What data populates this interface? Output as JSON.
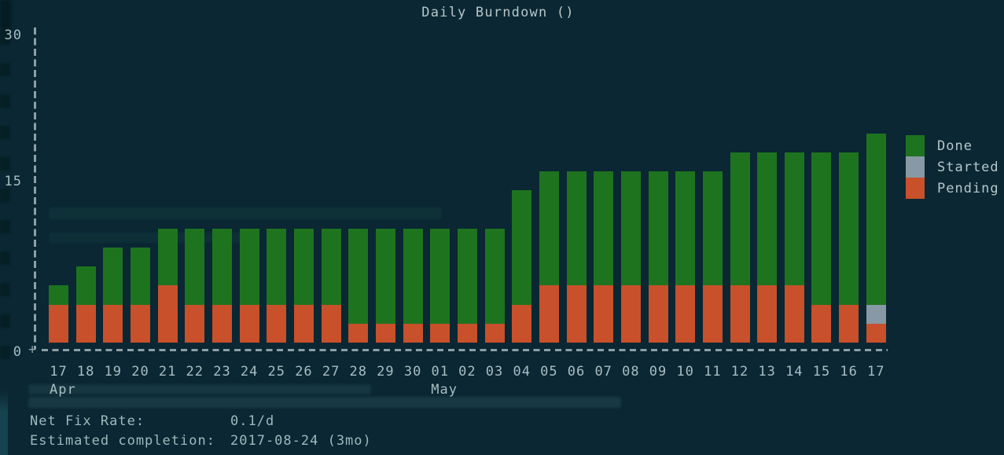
{
  "chart_data": {
    "type": "bar",
    "title": "Daily Burndown ()",
    "stacked": true,
    "categories": [
      "17",
      "18",
      "19",
      "20",
      "21",
      "22",
      "23",
      "24",
      "25",
      "26",
      "27",
      "28",
      "29",
      "30",
      "01",
      "02",
      "03",
      "04",
      "05",
      "06",
      "07",
      "08",
      "09",
      "10",
      "11",
      "12",
      "13",
      "14",
      "15",
      "16",
      "17"
    ],
    "month_labels": [
      {
        "index": 0,
        "label": "Apr"
      },
      {
        "index": 14,
        "label": "May"
      }
    ],
    "series": [
      {
        "name": "Done",
        "color": "#1e731f",
        "values": [
          2,
          4,
          6,
          6,
          6,
          8,
          8,
          8,
          8,
          8,
          8,
          10,
          10,
          10,
          10,
          10,
          10,
          12,
          12,
          12,
          12,
          12,
          12,
          12,
          12,
          14,
          14,
          14,
          16,
          16,
          18
        ]
      },
      {
        "name": "Started",
        "color": "#8799a4",
        "values": [
          0,
          0,
          0,
          0,
          0,
          0,
          0,
          0,
          0,
          0,
          0,
          0,
          0,
          0,
          0,
          0,
          0,
          0,
          0,
          0,
          0,
          0,
          0,
          0,
          0,
          0,
          0,
          0,
          0,
          0,
          2
        ]
      },
      {
        "name": "Pending",
        "color": "#c8502a",
        "values": [
          4,
          4,
          4,
          4,
          6,
          4,
          4,
          4,
          4,
          4,
          4,
          2,
          2,
          2,
          2,
          2,
          2,
          4,
          6,
          6,
          6,
          6,
          6,
          6,
          6,
          6,
          6,
          6,
          4,
          4,
          2
        ]
      }
    ],
    "stack_order_bottom_to_top": [
      "Pending",
      "Started",
      "Done"
    ],
    "ylim": [
      0,
      30
    ],
    "yticks": [
      "30",
      "15",
      "0"
    ],
    "axis_origin_glyph": "+",
    "grid": false,
    "legend_position": "right",
    "xlabel": "",
    "ylabel": ""
  },
  "stats": {
    "rows": [
      {
        "label": "Net Fix Rate:",
        "value": "0.1/d"
      },
      {
        "label": "Estimated completion:",
        "value": "2017-08-24 (3mo)"
      }
    ]
  },
  "colors": {
    "background": "#0a2733",
    "axis": "#8ea0a5",
    "text": "#a9bdc1"
  }
}
